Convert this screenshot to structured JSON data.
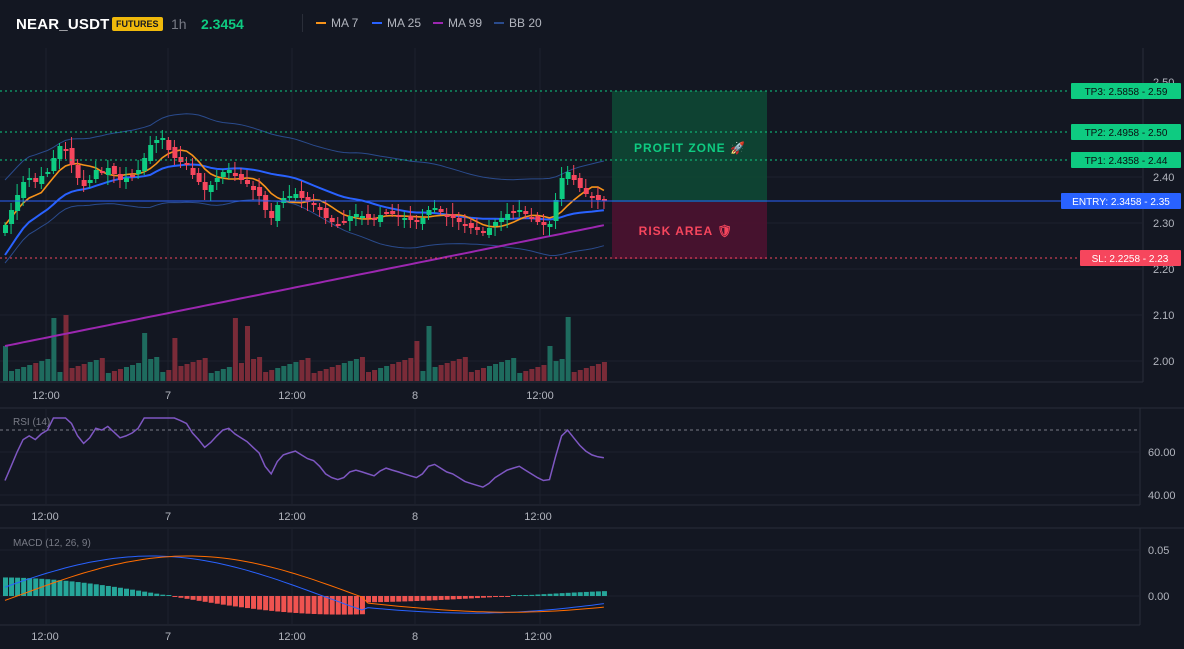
{
  "header": {
    "symbol": "NEAR_USDT",
    "badge": "FUTURES",
    "timeframe": "1h",
    "price": "2.3454",
    "legend": [
      {
        "label": "MA 7",
        "color": "#f7931a"
      },
      {
        "label": "MA 25",
        "color": "#2962ff"
      },
      {
        "label": "MA 99",
        "color": "#9c27b0"
      },
      {
        "label": "BB 20",
        "color": "#2a4b8d"
      }
    ]
  },
  "price_axis": {
    "ticks": [
      "2.40",
      "2.30",
      "2.20",
      "2.10",
      "2.00"
    ],
    "top_tick_partial": "2.50"
  },
  "levels": {
    "tp3": "TP3: 2.5858 - 2.59",
    "tp2": "TP2: 2.4958 - 2.50",
    "tp1": "TP1: 2.4358 - 2.44",
    "entry": "ENTRY: 2.3458 - 2.35",
    "sl": "SL: 2.2258 - 2.23"
  },
  "zones": {
    "profit": "PROFIT ZONE 🚀",
    "risk": "RISK AREA 🛡"
  },
  "time_axis": [
    "12:00",
    "7",
    "12:00",
    "8",
    "12:00"
  ],
  "rsi": {
    "label": "RSI (14)",
    "ticks": [
      "60.00",
      "40.00"
    ]
  },
  "macd": {
    "label": "MACD (12, 26, 9)",
    "ticks": [
      "0.05",
      "0.00"
    ]
  },
  "colors": {
    "up": "#26a69a",
    "up_bright": "#0ecb81",
    "down": "#f6465d",
    "ma7": "#f7931a",
    "ma25": "#2962ff",
    "ma99": "#9c27b0",
    "bb": "#2a4b8d",
    "rsi": "#7e57c2"
  }
}
